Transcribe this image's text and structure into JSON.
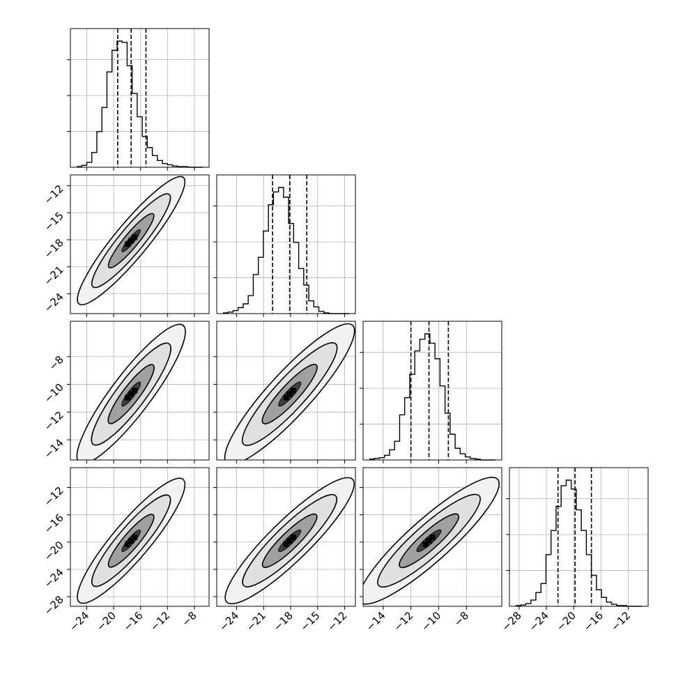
{
  "chart_data": {
    "type": "corner",
    "parameters": 4,
    "histograms": [
      {
        "param_index": 0,
        "range": [
          -25.5,
          -6.75
        ],
        "bins": 25,
        "counts": [
          1,
          3,
          8,
          24,
          58,
          97,
          155,
          190,
          205,
          203,
          165,
          120,
          82,
          50,
          32,
          19,
          11,
          6,
          4,
          2,
          1,
          1,
          0,
          0,
          0
        ],
        "quantiles": [
          -19.4,
          -17.4,
          -15.2
        ],
        "x_ticks": [
          -24,
          -20,
          -16,
          -12,
          -8
        ],
        "x_tick_labels": [
          "−24",
          "−20",
          "−16",
          "−12",
          "−8"
        ]
      },
      {
        "param_index": 1,
        "range": [
          -25.5,
          -11.5
        ],
        "bins": 25,
        "counts": [
          1,
          2,
          4,
          8,
          13,
          24,
          52,
          75,
          110,
          145,
          162,
          168,
          155,
          120,
          95,
          60,
          38,
          17,
          9,
          3,
          1,
          0,
          0,
          0,
          0
        ],
        "quantiles": [
          -20.0,
          -18.1,
          -16.2
        ],
        "x_ticks": [
          -24,
          -21,
          -18,
          -15,
          -12
        ],
        "x_tick_labels": [
          "−24",
          "−21",
          "−18",
          "−15",
          "−12"
        ],
        "y_ticks": [
          -24,
          -21,
          -18,
          -15,
          -12
        ],
        "y_tick_labels": [
          "−24",
          "−21",
          "−18",
          "−15",
          "−12"
        ]
      },
      {
        "param_index": 2,
        "range": [
          -15.0,
          -5.9
        ],
        "bins": 25,
        "counts": [
          1,
          2,
          3,
          6,
          13,
          24,
          58,
          80,
          110,
          140,
          155,
          162,
          150,
          130,
          95,
          60,
          33,
          15,
          8,
          4,
          2,
          1,
          0,
          0,
          0
        ],
        "quantiles": [
          -12.0,
          -10.7,
          -9.3
        ],
        "x_ticks": [
          -14,
          -12,
          -10,
          -8
        ],
        "x_tick_labels": [
          "−14",
          "−12",
          "−10",
          "−8"
        ],
        "y_ticks": [
          -14,
          -12,
          -10,
          -8
        ],
        "y_tick_labels": [
          "−14",
          "−12",
          "−10",
          "−8"
        ]
      },
      {
        "param_index": 3,
        "range": [
          -28.5,
          -10.0
        ],
        "bins": 25,
        "counts": [
          1,
          2,
          4,
          9,
          20,
          33,
          75,
          110,
          145,
          175,
          183,
          170,
          140,
          110,
          75,
          45,
          24,
          13,
          6,
          3,
          1,
          1,
          0,
          0,
          0
        ],
        "quantiles": [
          -22.3,
          -19.8,
          -17.4
        ],
        "x_ticks": [
          -28,
          -24,
          -20,
          -16,
          -12
        ],
        "x_tick_labels": [
          "−28",
          "−24",
          "−20",
          "−16",
          "−12"
        ],
        "y_ticks": [
          -28,
          -24,
          -20,
          -16,
          -12
        ],
        "y_tick_labels": [
          "−28",
          "−24",
          "−20",
          "−16",
          "−12"
        ]
      }
    ],
    "scatter_panels": [
      {
        "x_param": 0,
        "y_param": 1,
        "correlation": 0.92
      },
      {
        "x_param": 0,
        "y_param": 2,
        "correlation": 0.9
      },
      {
        "x_param": 1,
        "y_param": 2,
        "correlation": 0.9
      },
      {
        "x_param": 0,
        "y_param": 3,
        "correlation": 0.9
      },
      {
        "x_param": 1,
        "y_param": 3,
        "correlation": 0.9
      },
      {
        "x_param": 2,
        "y_param": 3,
        "correlation": 0.9
      }
    ],
    "grid": true,
    "colors": {
      "points": "#808080",
      "contour": "#000000",
      "grid": "#b0b0b0",
      "axes": "#000000"
    }
  }
}
